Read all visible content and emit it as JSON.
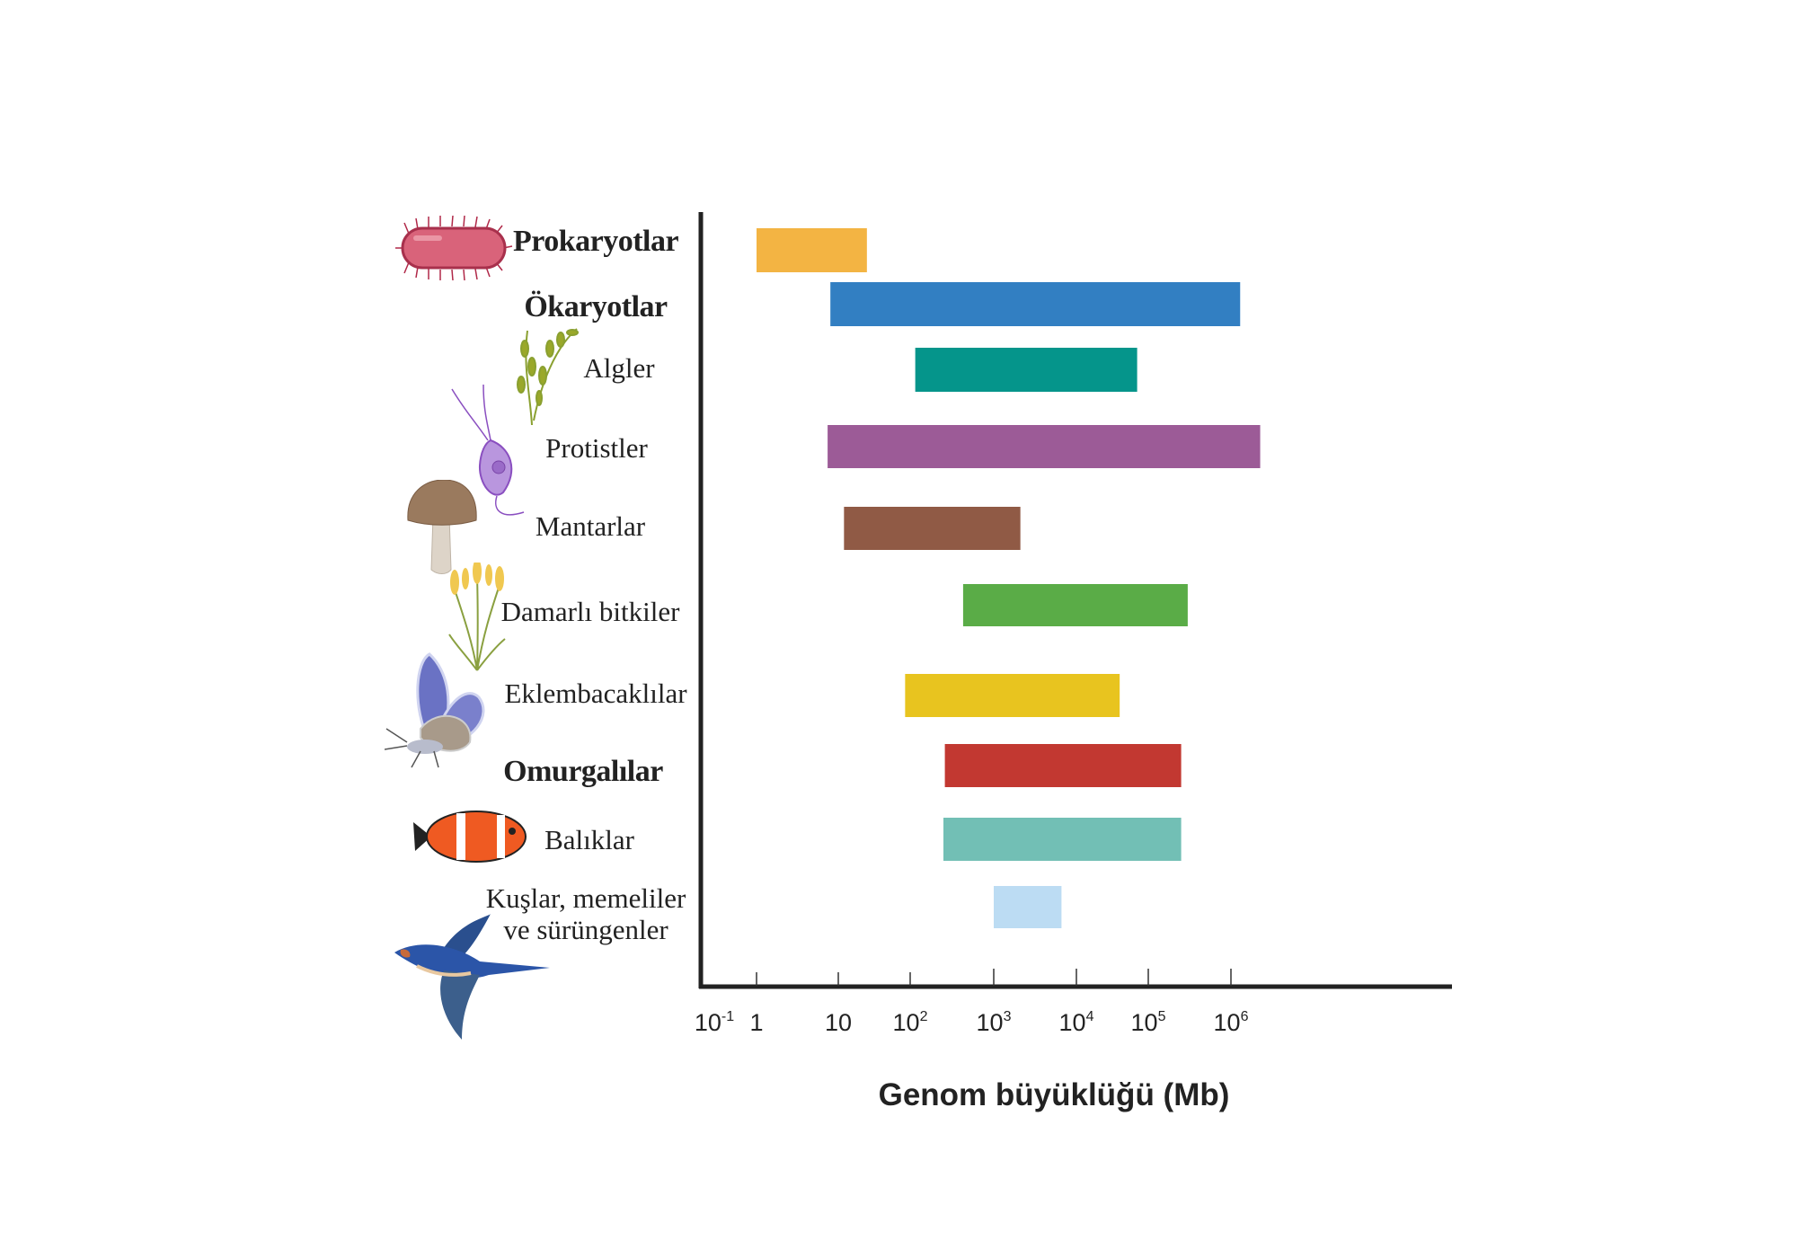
{
  "chart_data": {
    "type": "bar",
    "orientation": "horizontal",
    "xscale": "log",
    "xlabel": "Genom büyüklüğü (Mb)",
    "xticks": [
      {
        "base": "10",
        "exp": "-1",
        "log": -1
      },
      {
        "base": "1",
        "exp": "",
        "log": 0
      },
      {
        "base": "10",
        "exp": "",
        "log": 1
      },
      {
        "base": "10",
        "exp": "2",
        "log": 2
      },
      {
        "base": "10",
        "exp": "3",
        "log": 3
      },
      {
        "base": "10",
        "exp": "4",
        "log": 4
      },
      {
        "base": "10",
        "exp": "5",
        "log": 5
      },
      {
        "base": "10",
        "exp": "6",
        "log": 6
      }
    ],
    "categories": [
      {
        "label": "Prokaryotlar",
        "bold": true,
        "min": 1,
        "max": 25,
        "color": "#F3B443"
      },
      {
        "label": "Ökaryotlar",
        "bold": true,
        "min": 8,
        "max": 1300000,
        "color": "#327FC2"
      },
      {
        "label": "Algler",
        "bold": false,
        "min": 115,
        "max": 70000,
        "color": "#05958B"
      },
      {
        "label": "Protistler",
        "bold": false,
        "min": 7.4,
        "max": 2300000,
        "color": "#9C5B97"
      },
      {
        "label": "Mantarlar",
        "bold": false,
        "min": 12,
        "max": 2100,
        "color": "#905A45"
      },
      {
        "label": "Damarlı bitkiler",
        "bold": false,
        "min": 430,
        "max": 300000,
        "color": "#5AAC47"
      },
      {
        "label": "Eklembacaklılar",
        "bold": false,
        "min": 85,
        "max": 40000,
        "color": "#E8C41F"
      },
      {
        "label": "Omurgalılar",
        "bold": true,
        "min": 260,
        "max": 250000,
        "color": "#C23831"
      },
      {
        "label": "Balıklar",
        "bold": false,
        "min": 250,
        "max": 250000,
        "color": "#72BFB5"
      },
      {
        "label": "Kuşlar, memeliler",
        "label2": "ve sürüngenler",
        "bold": false,
        "min": 1000,
        "max": 6600,
        "color": "#BCDCF3"
      }
    ],
    "grid": false,
    "legend": "none"
  }
}
